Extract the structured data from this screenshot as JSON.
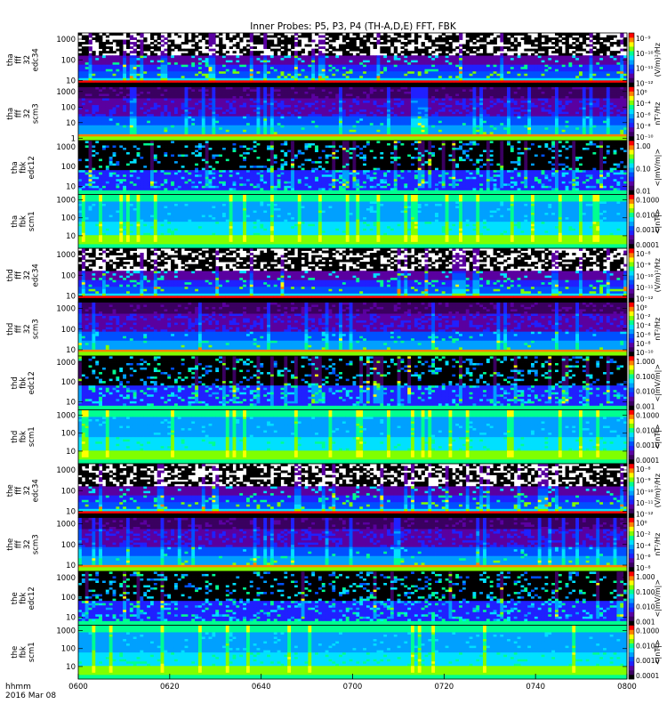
{
  "title": "Inner Probes: P5, P3, P4 (TH-A,D,E) FFT, FBK",
  "footer": {
    "time_label": "hhmm",
    "date_label": "2016 Mar 08"
  },
  "colors": {
    "colormap": [
      "#000000",
      "#3a0060",
      "#5a00a0",
      "#2020ff",
      "#0050ff",
      "#00a0ff",
      "#00e0ff",
      "#00ff90",
      "#80ff00",
      "#ffff00",
      "#ff8000",
      "#ff0000"
    ]
  },
  "chart_data": {
    "type": "heatmap",
    "x_ticks": [
      "0600",
      "0620",
      "0640",
      "0700",
      "0720",
      "0740",
      "0800"
    ],
    "x_range": [
      "0600",
      "0800"
    ],
    "panels": [
      {
        "id": "tha_fff32_edc34",
        "ylabel": [
          "tha",
          "fff",
          "32",
          "edc34"
        ],
        "yticks": [
          "1000",
          "100",
          "10"
        ],
        "yscale": "log",
        "ylim": [
          5,
          2000
        ],
        "cbar_ticks": [
          "10⁻⁹",
          "10⁻¹⁰",
          "10⁻¹¹",
          "10⁻¹²"
        ],
        "cbar_label": "(V/m)²/Hz",
        "style": "edc34"
      },
      {
        "id": "tha_fff32_scm3",
        "ylabel": [
          "tha",
          "fff",
          "32",
          "scm3"
        ],
        "yticks": [
          "1000",
          "100",
          "10",
          "1"
        ],
        "yscale": "log",
        "ylim": [
          0.7,
          2000
        ],
        "cbar_ticks": [
          "10⁰",
          "10⁻⁴",
          "10⁻⁶",
          "10⁻⁸",
          "10⁻¹⁰"
        ],
        "cbar_label": "nT²/Hz",
        "style": "scm3"
      },
      {
        "id": "tha_fbk_edc12",
        "ylabel": [
          "tha",
          "fbk",
          "edc12"
        ],
        "yticks": [
          "1000",
          "100",
          "10"
        ],
        "yscale": "log",
        "ylim": [
          4,
          2000
        ],
        "cbar_ticks": [
          "1.00",
          "0.10",
          "0.01"
        ],
        "cbar_label": "<|mV/m|>",
        "style": "edc12"
      },
      {
        "id": "tha_fbk_scm1",
        "ylabel": [
          "tha",
          "fbk",
          "scm1"
        ],
        "yticks": [
          "1000",
          "100",
          "10"
        ],
        "yscale": "log",
        "ylim": [
          2,
          2000
        ],
        "cbar_ticks": [
          "0.1000",
          "0.0100",
          "0.0010",
          "0.0001"
        ],
        "cbar_label": "<|nT|>",
        "style": "scm1"
      },
      {
        "id": "thd_fff32_edc34",
        "ylabel": [
          "thd",
          "fff",
          "32",
          "edc34"
        ],
        "yticks": [
          "1000",
          "100",
          "10"
        ],
        "yscale": "log",
        "ylim": [
          5,
          2000
        ],
        "cbar_ticks": [
          "10⁻⁸",
          "10⁻⁹",
          "10⁻¹⁰",
          "10⁻¹¹",
          "10⁻¹²"
        ],
        "cbar_label": "(V/m)²/Hz",
        "style": "edc34"
      },
      {
        "id": "thd_fff32_scm3",
        "ylabel": [
          "thd",
          "fff",
          "32",
          "scm3"
        ],
        "yticks": [
          "1000",
          "100",
          "10"
        ],
        "yscale": "log",
        "ylim": [
          5,
          2000
        ],
        "cbar_ticks": [
          "10⁰",
          "10⁻²",
          "10⁻⁴",
          "10⁻⁶",
          "10⁻⁸",
          "10⁻¹⁰"
        ],
        "cbar_label": "nT²/Hz",
        "style": "scm3"
      },
      {
        "id": "thd_fbk_edc12",
        "ylabel": [
          "thd",
          "fbk",
          "edc12"
        ],
        "yticks": [
          "1000",
          "100",
          "10"
        ],
        "yscale": "log",
        "ylim": [
          4,
          2000
        ],
        "cbar_ticks": [
          "1.000",
          "0.100",
          "0.010",
          "0.001"
        ],
        "cbar_label": "<|mV/m|>",
        "style": "edc12"
      },
      {
        "id": "thd_fbk_scm1",
        "ylabel": [
          "thd",
          "fbk",
          "scm1"
        ],
        "yticks": [
          "1000",
          "100",
          "10"
        ],
        "yscale": "log",
        "ylim": [
          2,
          2000
        ],
        "cbar_ticks": [
          "0.1000",
          "0.0100",
          "0.0010",
          "0.0001"
        ],
        "cbar_label": "<|nT|>",
        "style": "scm1"
      },
      {
        "id": "the_fff32_edc34",
        "ylabel": [
          "the",
          "fff",
          "32",
          "edc34"
        ],
        "yticks": [
          "1000",
          "100",
          "10"
        ],
        "yscale": "log",
        "ylim": [
          5,
          2000
        ],
        "cbar_ticks": [
          "10⁻⁸",
          "10⁻⁹",
          "10⁻¹⁰",
          "10⁻¹¹",
          "10⁻¹²"
        ],
        "cbar_label": "(V/m)²/Hz",
        "style": "edc34"
      },
      {
        "id": "the_fff32_scm3",
        "ylabel": [
          "the",
          "fff",
          "32",
          "scm3"
        ],
        "yticks": [
          "1000",
          "100",
          "10"
        ],
        "yscale": "log",
        "ylim": [
          5,
          2000
        ],
        "cbar_ticks": [
          "10⁰",
          "10⁻²",
          "10⁻⁴",
          "10⁻⁶",
          "10⁻⁸"
        ],
        "cbar_label": "nT²/Hz",
        "style": "scm3"
      },
      {
        "id": "the_fbk_edc12",
        "ylabel": [
          "the",
          "fbk",
          "edc12"
        ],
        "yticks": [
          "1000",
          "100",
          "10"
        ],
        "yscale": "log",
        "ylim": [
          4,
          2000
        ],
        "cbar_ticks": [
          "1.000",
          "0.100",
          "0.010",
          "0.001"
        ],
        "cbar_label": "<|mV/m|>",
        "style": "edc12"
      },
      {
        "id": "the_fbk_scm1",
        "ylabel": [
          "the",
          "fbk",
          "scm1"
        ],
        "yticks": [
          "1000",
          "100",
          "10"
        ],
        "yscale": "log",
        "ylim": [
          2,
          2000
        ],
        "cbar_ticks": [
          "0.1000",
          "0.0100",
          "0.0010",
          "0.0001"
        ],
        "cbar_label": "<|nT|>",
        "style": "scm1"
      }
    ]
  }
}
